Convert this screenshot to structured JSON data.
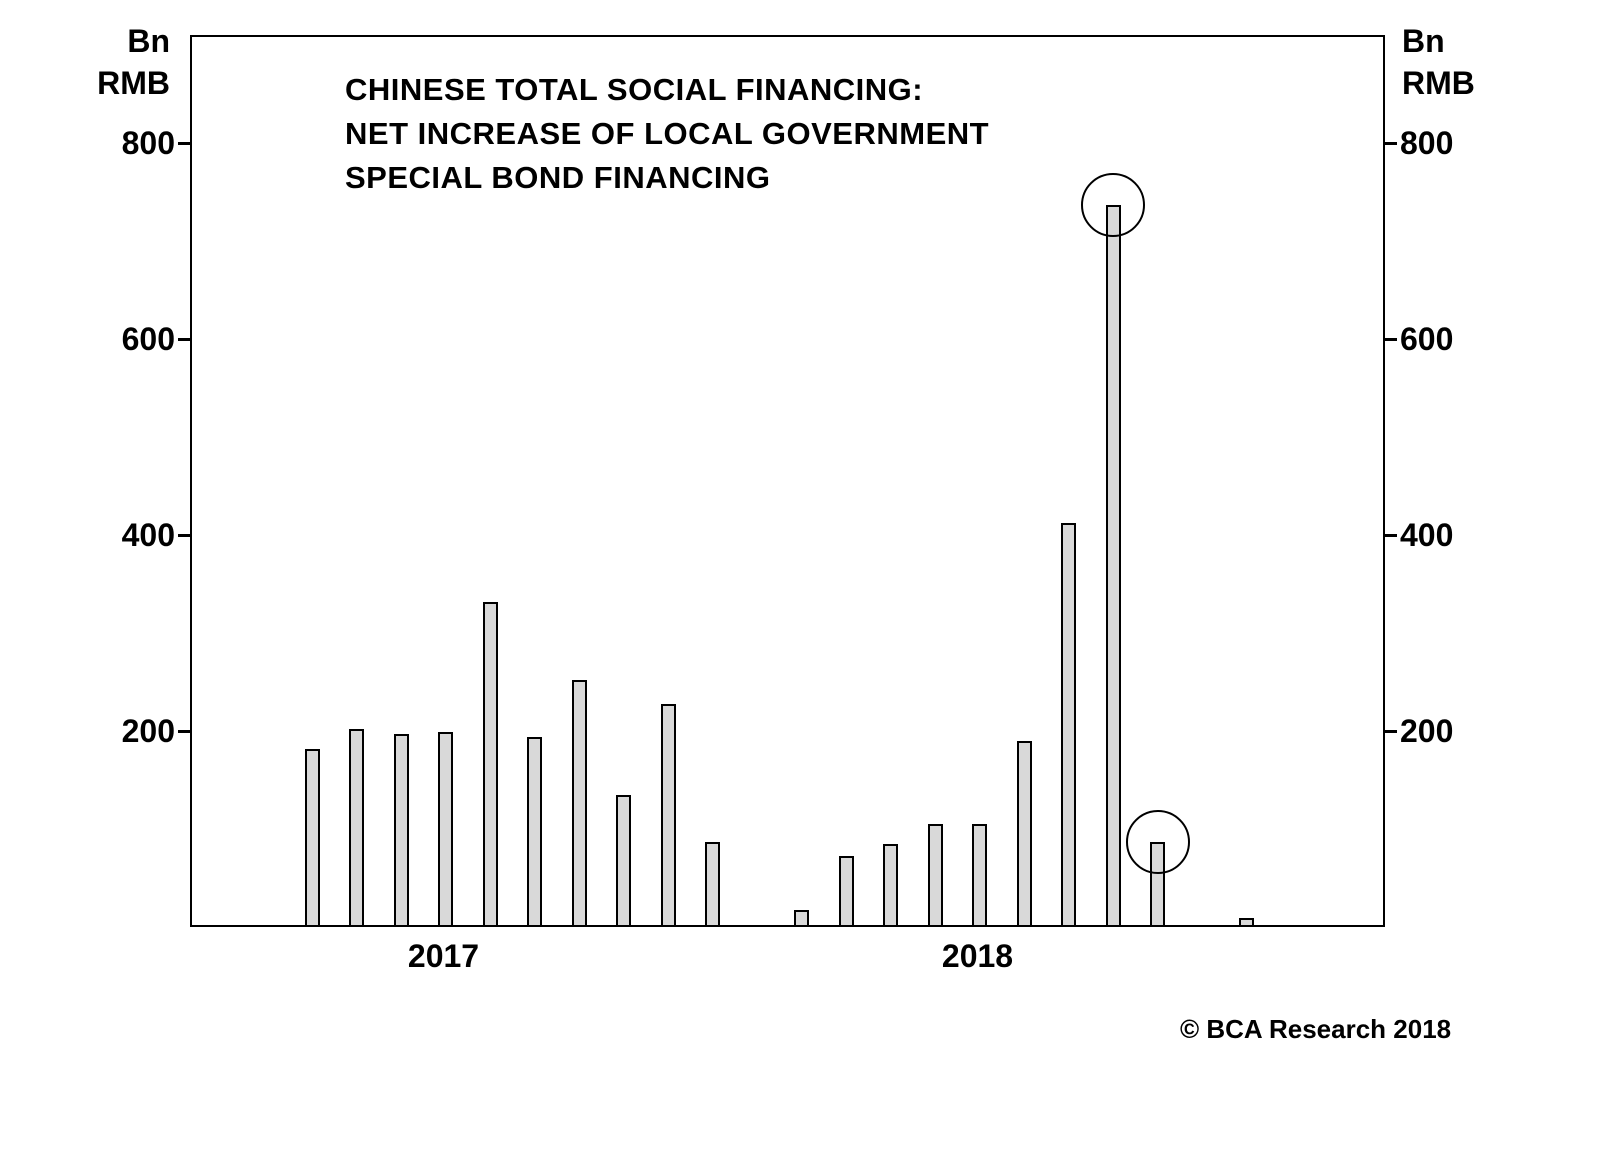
{
  "title": {
    "lines": [
      "CHINESE TOTAL SOCIAL FINANCING:",
      "NET INCREASE OF LOCAL GOVERNMENT",
      "SPECIAL BOND FINANCING"
    ]
  },
  "axes": {
    "unit_lines": [
      "Bn",
      "RMB"
    ]
  },
  "footer": {
    "copyright": "© BCA Research 2018"
  },
  "chart_data": {
    "type": "bar",
    "title": "CHINESE TOTAL SOCIAL FINANCING: NET INCREASE OF LOCAL GOVERNMENT SPECIAL BOND FINANCING",
    "unit": "Bn RMB",
    "ylim": [
      0,
      910
    ],
    "yticks": [
      200,
      400,
      600,
      800
    ],
    "grid": false,
    "legend_position": "none",
    "bar_fill": "#d9d9d9",
    "bar_stroke": "#000000",
    "x_year_labels": [
      {
        "label": "2017",
        "slot": 3
      },
      {
        "label": "2018",
        "slot": 15
      }
    ],
    "bars": [
      {
        "slot": 0,
        "value": 180
      },
      {
        "slot": 1,
        "value": 200
      },
      {
        "slot": 2,
        "value": 195
      },
      {
        "slot": 3,
        "value": 197
      },
      {
        "slot": 4,
        "value": 330
      },
      {
        "slot": 5,
        "value": 192
      },
      {
        "slot": 6,
        "value": 250
      },
      {
        "slot": 7,
        "value": 133
      },
      {
        "slot": 8,
        "value": 225
      },
      {
        "slot": 9,
        "value": 85
      },
      {
        "slot": 11,
        "value": 15
      },
      {
        "slot": 12,
        "value": 70
      },
      {
        "slot": 13,
        "value": 83
      },
      {
        "slot": 14,
        "value": 103
      },
      {
        "slot": 15,
        "value": 103
      },
      {
        "slot": 16,
        "value": 188
      },
      {
        "slot": 17,
        "value": 410
      },
      {
        "slot": 18,
        "value": 735,
        "circled": true
      },
      {
        "slot": 19,
        "value": 85,
        "circled": true
      },
      {
        "slot": 21,
        "value": 7
      }
    ]
  }
}
